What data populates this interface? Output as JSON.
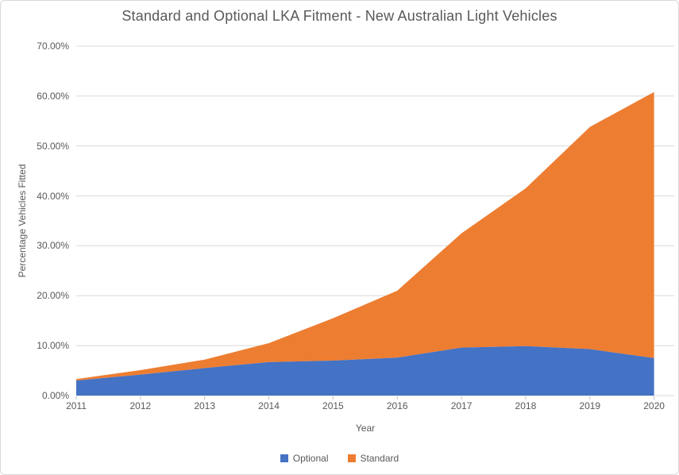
{
  "chart": {
    "background": "#FFFFFF",
    "border_color": "#D9D9D9",
    "gridline_color": "#D9D9D9",
    "tick_color": "#BFBFBF",
    "text_color": "#595959"
  },
  "chart_data": {
    "type": "area",
    "stacked": true,
    "title": "Standard and Optional LKA Fitment - New Australian Light Vehicles",
    "xlabel": "Year",
    "ylabel": "Percentage Vehicles Fitted",
    "categories": [
      "2011",
      "2012",
      "2013",
      "2014",
      "2015",
      "2016",
      "2017",
      "2018",
      "2019",
      "2020"
    ],
    "series": [
      {
        "name": "Optional",
        "color": "#4472C4",
        "values": [
          3.0,
          4.2,
          5.5,
          6.7,
          7.0,
          7.6,
          9.6,
          9.9,
          9.3,
          7.5
        ]
      },
      {
        "name": "Standard",
        "color": "#ED7D31",
        "values": [
          0.3,
          0.9,
          1.7,
          3.8,
          8.5,
          13.4,
          22.9,
          31.6,
          44.5,
          53.3
        ]
      }
    ],
    "stacked_totals": [
      3.3,
      5.1,
      7.2,
      10.5,
      15.5,
      21.0,
      32.5,
      41.5,
      53.8,
      60.8
    ],
    "ylim": [
      0,
      70
    ],
    "y_ticks": [
      {
        "value": 0,
        "label": "0.00%"
      },
      {
        "value": 10,
        "label": "10.00%"
      },
      {
        "value": 20,
        "label": "20.00%"
      },
      {
        "value": 30,
        "label": "30.00%"
      },
      {
        "value": 40,
        "label": "40.00%"
      },
      {
        "value": 50,
        "label": "50.00%"
      },
      {
        "value": 60,
        "label": "60.00%"
      },
      {
        "value": 70,
        "label": "70.00%"
      }
    ],
    "grid": true,
    "legend_position": "bottom"
  }
}
